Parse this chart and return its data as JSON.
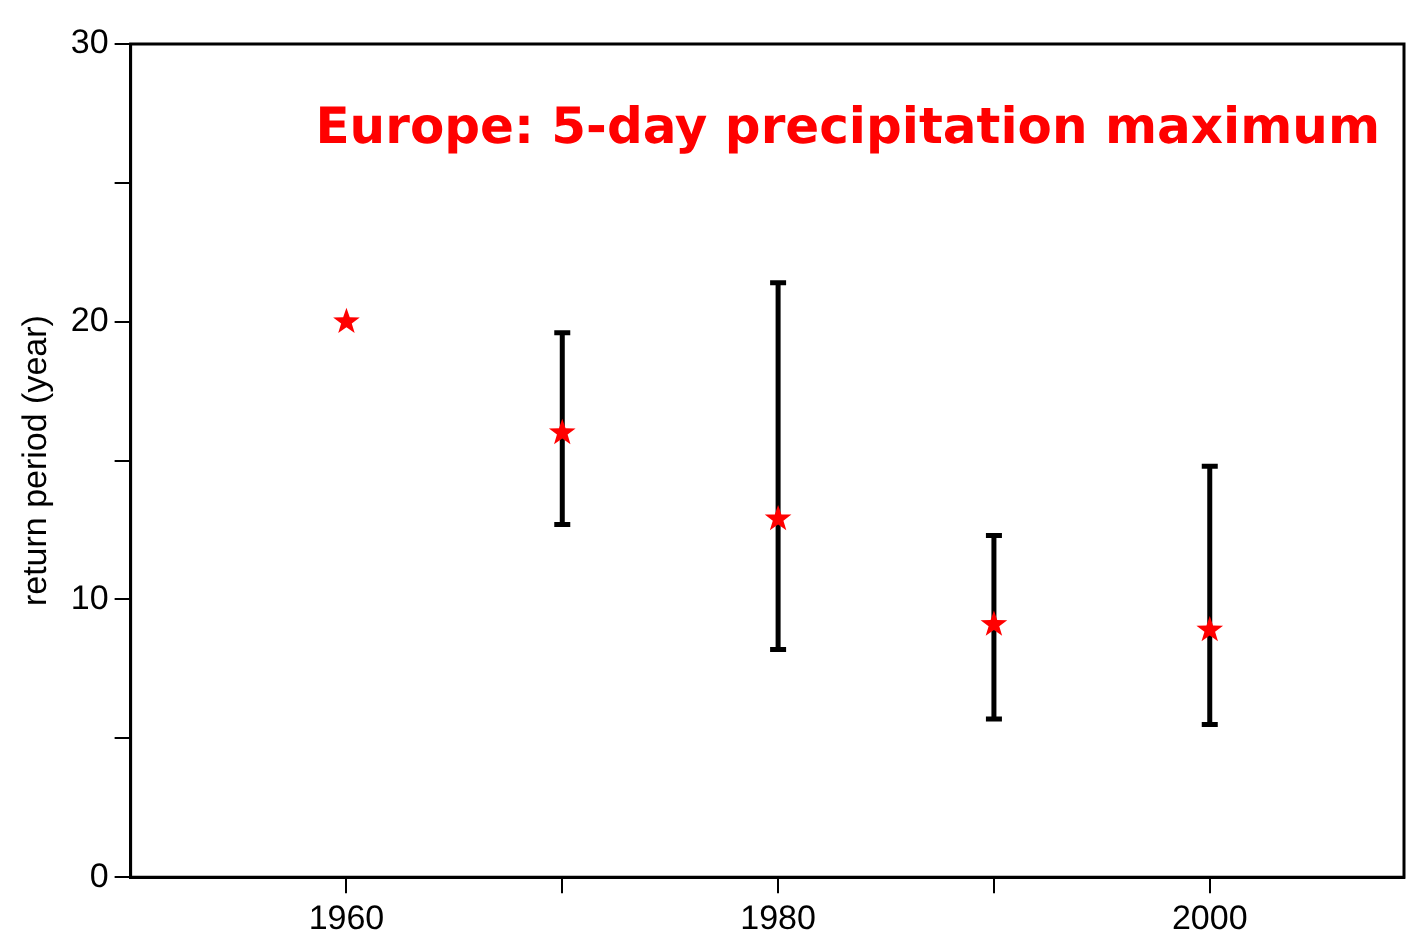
{
  "chart_data": {
    "type": "scatter",
    "ylabel": "return period (year)",
    "annotations": [
      "Europe: 5-day precipitation maximum"
    ],
    "x": [
      1960,
      1970,
      1980,
      1990,
      2000
    ],
    "series": [
      {
        "color": "#ff0000",
        "values": [
          20,
          16,
          12.9,
          9.1,
          8.9
        ],
        "errors": [
          null,
          [
            12.7,
            19.6
          ],
          [
            8.2,
            21.4
          ],
          [
            5.7,
            12.3
          ],
          [
            5.5,
            14.8
          ]
        ]
      }
    ],
    "xlim": [
      1950,
      2009
    ],
    "xticks": [
      1960,
      {
        "value": 1970,
        "label": null
      },
      1980,
      {
        "value": 1990,
        "label": null
      },
      2000
    ],
    "ylim": [
      0,
      30
    ],
    "yticks": [
      0,
      {
        "value": 5,
        "label": null
      },
      10,
      {
        "value": 15,
        "label": null
      },
      20,
      {
        "value": 25,
        "label": null
      },
      30
    ],
    "marker": "star",
    "grid": false,
    "legend": false
  }
}
